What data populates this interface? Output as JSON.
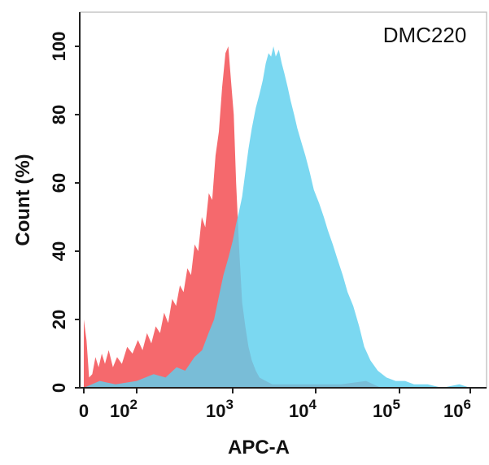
{
  "chart_data": {
    "type": "area",
    "annotation": "DMC220",
    "xlabel": "APC-A",
    "ylabel": "Count  (%)",
    "ylim": [
      0,
      100
    ],
    "yticks": [
      0,
      20,
      40,
      60,
      80,
      100
    ],
    "x_scale": "biexponential",
    "xticks": [
      {
        "value": 0,
        "label": "0"
      },
      {
        "value": 100,
        "base": "10",
        "exp": "2"
      },
      {
        "value": 1000,
        "base": "10",
        "exp": "3"
      },
      {
        "value": 10000,
        "base": "10",
        "exp": "4"
      },
      {
        "value": 100000,
        "base": "10",
        "exp": "5"
      },
      {
        "value": 1000000,
        "base": "10",
        "exp": "6"
      }
    ],
    "grid": false,
    "legend": "none",
    "series": [
      {
        "color": "#f4595d",
        "opacity": 0.9,
        "points": [
          [
            0,
            20
          ],
          [
            5,
            14
          ],
          [
            10,
            3
          ],
          [
            16,
            4
          ],
          [
            22,
            9
          ],
          [
            28,
            6
          ],
          [
            34,
            10
          ],
          [
            40,
            7
          ],
          [
            47,
            11
          ],
          [
            55,
            6
          ],
          [
            63,
            9
          ],
          [
            72,
            7
          ],
          [
            82,
            12
          ],
          [
            92,
            10
          ],
          [
            103,
            14
          ],
          [
            115,
            11
          ],
          [
            128,
            16
          ],
          [
            142,
            13
          ],
          [
            158,
            18
          ],
          [
            175,
            16
          ],
          [
            193,
            22
          ],
          [
            213,
            19
          ],
          [
            234,
            26
          ],
          [
            257,
            24
          ],
          [
            282,
            30
          ],
          [
            308,
            28
          ],
          [
            337,
            35
          ],
          [
            368,
            33
          ],
          [
            401,
            42
          ],
          [
            437,
            40
          ],
          [
            476,
            50
          ],
          [
            518,
            47
          ],
          [
            563,
            57
          ],
          [
            611,
            55
          ],
          [
            662,
            68
          ],
          [
            717,
            75
          ],
          [
            776,
            88
          ],
          [
            840,
            98
          ],
          [
            900,
            100
          ],
          [
            960,
            90
          ],
          [
            1030,
            80
          ],
          [
            1100,
            60
          ],
          [
            1200,
            40
          ],
          [
            1300,
            25
          ],
          [
            1420,
            18
          ],
          [
            1550,
            12
          ],
          [
            1700,
            8
          ],
          [
            1900,
            5
          ],
          [
            2100,
            3
          ],
          [
            2500,
            2
          ],
          [
            3000,
            1
          ],
          [
            5000,
            1
          ],
          [
            8000,
            1
          ],
          [
            20000,
            1
          ],
          [
            40000,
            2
          ],
          [
            60000,
            0
          ],
          [
            1000000,
            0
          ]
        ]
      },
      {
        "color": "#5ecfee",
        "opacity": 0.82,
        "points": [
          [
            0,
            0
          ],
          [
            30,
            2
          ],
          [
            60,
            1
          ],
          [
            100,
            2
          ],
          [
            150,
            4
          ],
          [
            200,
            3
          ],
          [
            260,
            6
          ],
          [
            320,
            5
          ],
          [
            400,
            9
          ],
          [
            480,
            11
          ],
          [
            560,
            16
          ],
          [
            640,
            20
          ],
          [
            720,
            27
          ],
          [
            800,
            33
          ],
          [
            900,
            38
          ],
          [
            1000,
            43
          ],
          [
            1100,
            48
          ],
          [
            1200,
            52
          ],
          [
            1300,
            56
          ],
          [
            1400,
            62
          ],
          [
            1550,
            70
          ],
          [
            1700,
            76
          ],
          [
            1900,
            82
          ],
          [
            2100,
            86
          ],
          [
            2300,
            90
          ],
          [
            2500,
            95
          ],
          [
            2700,
            98
          ],
          [
            2900,
            97
          ],
          [
            3100,
            100
          ],
          [
            3300,
            97
          ],
          [
            3600,
            99
          ],
          [
            3900,
            95
          ],
          [
            4200,
            92
          ],
          [
            4600,
            88
          ],
          [
            5000,
            84
          ],
          [
            5500,
            80
          ],
          [
            6000,
            76
          ],
          [
            6700,
            72
          ],
          [
            7500,
            68
          ],
          [
            8500,
            63
          ],
          [
            9500,
            58
          ],
          [
            11000,
            54
          ],
          [
            12500,
            50
          ],
          [
            14000,
            46
          ],
          [
            16000,
            42
          ],
          [
            18000,
            38
          ],
          [
            21000,
            33
          ],
          [
            24000,
            28
          ],
          [
            28000,
            24
          ],
          [
            33000,
            18
          ],
          [
            38000,
            12
          ],
          [
            45000,
            8
          ],
          [
            55000,
            5
          ],
          [
            70000,
            3
          ],
          [
            90000,
            2
          ],
          [
            120000,
            2
          ],
          [
            160000,
            1
          ],
          [
            250000,
            1
          ],
          [
            400000,
            0
          ],
          [
            700000,
            1
          ],
          [
            1000000,
            0
          ]
        ]
      }
    ]
  }
}
